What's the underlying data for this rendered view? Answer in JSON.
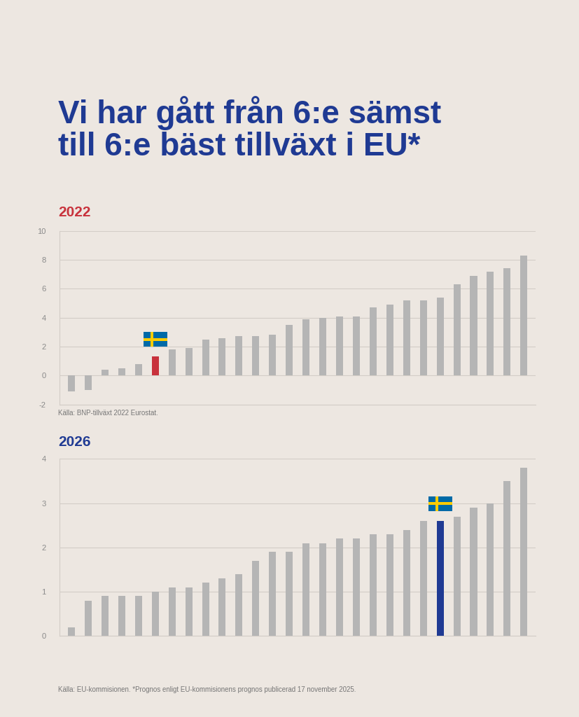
{
  "title": "Vi har gått från 6:e sämst\ntill 6:e bäst tillväxt i EU*",
  "chart_data": [
    {
      "type": "bar",
      "title": "2022",
      "categories": [
        null,
        null,
        null,
        null,
        null,
        null,
        null,
        null,
        null,
        null,
        null,
        null,
        null,
        null,
        null,
        null,
        null,
        null,
        null,
        null,
        null,
        null,
        null,
        null,
        null,
        null,
        null,
        null
      ],
      "values": [
        -1.1,
        -1.0,
        0.4,
        0.5,
        0.8,
        1.3,
        1.8,
        1.9,
        2.5,
        2.6,
        2.7,
        2.7,
        2.8,
        3.5,
        3.9,
        4.0,
        4.1,
        4.1,
        4.7,
        4.9,
        5.2,
        5.2,
        5.4,
        6.3,
        6.9,
        7.2,
        7.4,
        8.3
      ],
      "colors": [
        "#b5b5b5",
        "#b5b5b5",
        "#b5b5b5",
        "#b5b5b5",
        "#b5b5b5",
        "#c8323c",
        "#b5b5b5",
        "#b5b5b5",
        "#b5b5b5",
        "#b5b5b5",
        "#b5b5b5",
        "#b5b5b5",
        "#b5b5b5",
        "#b5b5b5",
        "#b5b5b5",
        "#b5b5b5",
        "#b5b5b5",
        "#b5b5b5",
        "#b5b5b5",
        "#b5b5b5",
        "#b5b5b5",
        "#b5b5b5",
        "#b5b5b5",
        "#b5b5b5",
        "#b5b5b5",
        "#b5b5b5",
        "#b5b5b5",
        "#b5b5b5"
      ],
      "ylim": [
        -2,
        10
      ],
      "yticks": [
        -2,
        0,
        2,
        4,
        6,
        8,
        10
      ],
      "grid": true,
      "tick_labels": "y",
      "source": "Källa: BNP-tillväxt 2022 Eurostat."
    },
    {
      "type": "bar",
      "title": "2026",
      "categories": [
        null,
        null,
        null,
        null,
        null,
        null,
        null,
        null,
        null,
        null,
        null,
        null,
        null,
        null,
        null,
        null,
        null,
        null,
        null,
        null,
        null,
        null,
        null,
        null,
        null,
        null,
        null,
        null
      ],
      "values": [
        0.2,
        0.8,
        0.9,
        0.9,
        0.9,
        1.0,
        1.1,
        1.1,
        1.2,
        1.3,
        1.4,
        1.7,
        1.9,
        1.9,
        2.1,
        2.1,
        2.2,
        2.2,
        2.3,
        2.3,
        2.4,
        2.6,
        2.6,
        2.7,
        2.9,
        3.0,
        3.5,
        3.8
      ],
      "colors": [
        "#b5b5b5",
        "#b5b5b5",
        "#b5b5b5",
        "#b5b5b5",
        "#b5b5b5",
        "#b5b5b5",
        "#b5b5b5",
        "#b5b5b5",
        "#b5b5b5",
        "#b5b5b5",
        "#b5b5b5",
        "#b5b5b5",
        "#b5b5b5",
        "#b5b5b5",
        "#b5b5b5",
        "#b5b5b5",
        "#b5b5b5",
        "#b5b5b5",
        "#b5b5b5",
        "#b5b5b5",
        "#b5b5b5",
        "#b5b5b5",
        "#1f3a93",
        "#b5b5b5",
        "#b5b5b5",
        "#b5b5b5",
        "#b5b5b5",
        "#b5b5b5"
      ],
      "ylim": [
        0,
        4
      ],
      "yticks": [
        0,
        1,
        2,
        3,
        4
      ],
      "grid": true,
      "tick_labels": "y",
      "source": "Källa: EU-kommisionen. *Prognos enligt EU-kommisionens prognos publicerad 17 november 2025."
    }
  ]
}
